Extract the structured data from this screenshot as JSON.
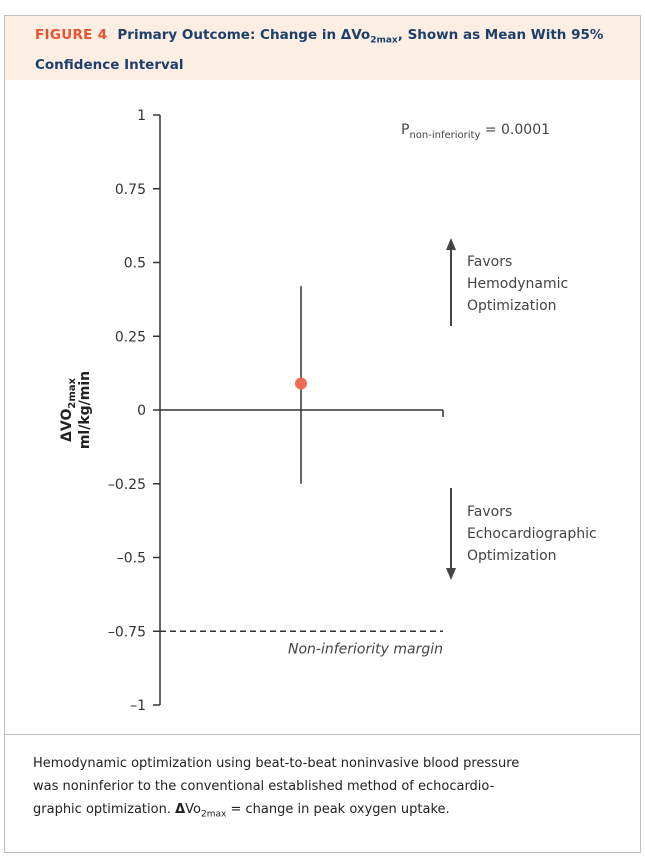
{
  "figure": {
    "label": "FIGURE 4",
    "title_part1": "Primary Outcome: Change in ΔVo",
    "title_sub": "2max",
    "title_part2": ", Shown as Mean With 95% Confidence Interval"
  },
  "chart_data": {
    "type": "scatter",
    "ylabel_line1": "ΔVO",
    "ylabel_sub": "2max",
    "ylabel_line2": "ml/kg/min",
    "ylim": [
      -1,
      1
    ],
    "yticks": [
      1,
      0.75,
      0.5,
      0.25,
      0,
      -0.25,
      -0.5,
      -0.75,
      -1
    ],
    "ytick_labels": [
      "1",
      "0.75",
      "0.5",
      "0.25",
      "0",
      "–0.25",
      "–0.5",
      "–0.75",
      "–1"
    ],
    "point": {
      "mean": 0.09,
      "ci_low": -0.25,
      "ci_high": 0.42,
      "color": "#ef6c55"
    },
    "non_inferiority_margin": -0.75,
    "margin_label": "Non-inferiority margin",
    "p_label_main": "P",
    "p_label_sub": "non-inferiority",
    "p_value_text": " = 0.0001",
    "favors_up": [
      "Favors",
      "Hemodynamic",
      "Optimization"
    ],
    "favors_down": [
      "Favors",
      "Echocardiographic",
      "Optimization"
    ]
  },
  "caption": {
    "line1": "Hemodynamic optimization using beat-to-beat noninvasive blood pressure",
    "line2": "was noninferior to the conventional established method of echocardio-",
    "line3_part1": "graphic optimization. ",
    "line3_bold": "Δ",
    "line3_part2": "Vo",
    "line3_sub": "2max",
    "line3_part3": " = change in peak oxygen uptake."
  },
  "colors": {
    "header_bg": "#fdeee3",
    "label": "#e8532e",
    "title": "#1f3f6b",
    "point": "#ef6c55"
  }
}
